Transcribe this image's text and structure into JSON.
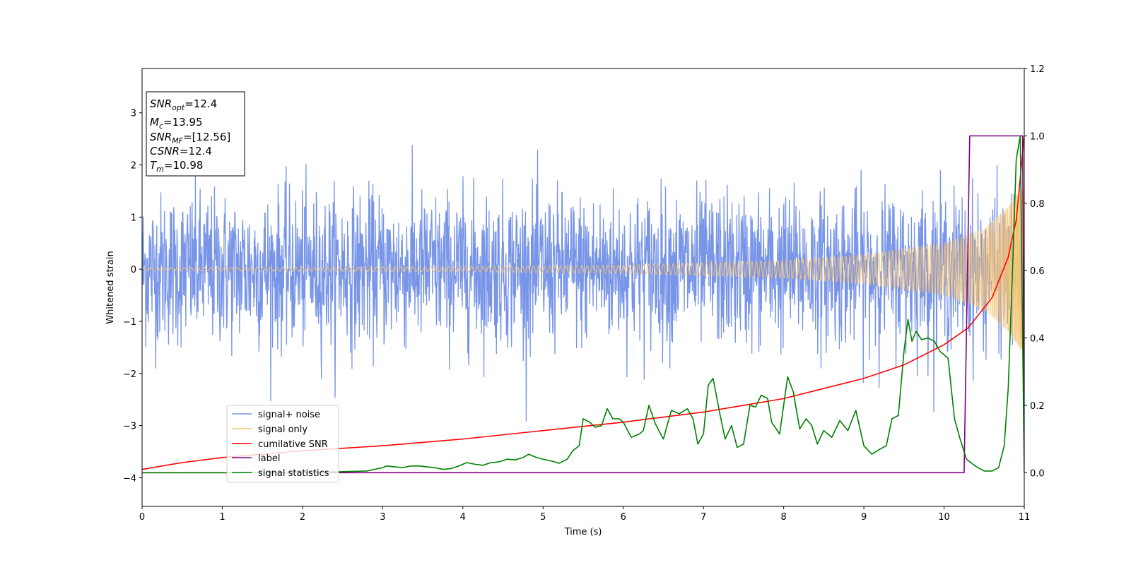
{
  "chart_data": {
    "type": "line",
    "xlabel": "Time (s)",
    "ylabel": "Whitened strain",
    "xlim": [
      0,
      11
    ],
    "ylim_left": [
      -4.55,
      3.85
    ],
    "ylim_right": [
      -0.1,
      1.2
    ],
    "xticks": [
      "0",
      "1",
      "2",
      "3",
      "4",
      "5",
      "6",
      "7",
      "8",
      "9",
      "10",
      "11"
    ],
    "yticks_left": [
      "−4",
      "−3",
      "−2",
      "−1",
      "0",
      "1",
      "2",
      "3"
    ],
    "yticks_right": [
      "0.0",
      "0.2",
      "0.4",
      "0.6",
      "0.8",
      "1.0",
      "1.2"
    ],
    "grid": false,
    "legend_placement": "lower-left",
    "info_box": {
      "snr_opt": {
        "base": "SNR",
        "sub": "opt",
        "value": "=12.4"
      },
      "mc": {
        "base": "M",
        "sub": "c",
        "value": "=13.95"
      },
      "snr_mf": {
        "base": "SNR",
        "sub": "MF",
        "value": "=[12.56]"
      },
      "csnr": {
        "base": "CSNR",
        "value": "=12.4"
      },
      "tm": {
        "base": "T",
        "sub": "m",
        "value": "=10.98"
      }
    },
    "series": [
      {
        "name": "signal+ noise",
        "color": "#7895e8",
        "axis": "left",
        "kind": "noise",
        "envelope_typical": 1.6,
        "envelope_peak": 3.45,
        "x_range": [
          0,
          11
        ]
      },
      {
        "name": "signal only",
        "color": "#f6c374",
        "axis": "left",
        "kind": "chirp",
        "amplitude_points": [
          [
            0,
            0.03
          ],
          [
            4,
            0.05
          ],
          [
            6,
            0.08
          ],
          [
            8,
            0.17
          ],
          [
            9,
            0.28
          ],
          [
            10,
            0.5
          ],
          [
            10.5,
            0.78
          ],
          [
            10.8,
            1.2
          ],
          [
            10.95,
            1.55
          ]
        ],
        "x_range": [
          0,
          11
        ]
      },
      {
        "name": "cumilative SNR",
        "color": "#ff0000",
        "axis": "right",
        "x": [
          0,
          0.5,
          1,
          2,
          3,
          4,
          5,
          6,
          7,
          7.5,
          8,
          8.5,
          9,
          9.5,
          10,
          10.3,
          10.6,
          10.8,
          10.9,
          11
        ],
        "y": [
          0.01,
          0.03,
          0.045,
          0.065,
          0.08,
          0.1,
          0.125,
          0.15,
          0.18,
          0.2,
          0.22,
          0.25,
          0.28,
          0.32,
          0.38,
          0.43,
          0.52,
          0.64,
          0.75,
          1.0
        ]
      },
      {
        "name": "label",
        "color": "#800080",
        "axis": "right",
        "x": [
          0,
          10.25,
          10.32,
          10.98,
          11
        ],
        "y": [
          0,
          0,
          1,
          1,
          0
        ]
      },
      {
        "name": "signal statistics",
        "color": "#008000",
        "axis": "right",
        "x": [
          0,
          2.0,
          2.8,
          3.0,
          3.05,
          3.25,
          3.35,
          3.45,
          3.65,
          3.75,
          3.85,
          3.95,
          4.05,
          4.15,
          4.25,
          4.35,
          4.45,
          4.55,
          4.65,
          4.75,
          4.82,
          4.92,
          5.0,
          5.1,
          5.2,
          5.3,
          5.37,
          5.45,
          5.5,
          5.58,
          5.65,
          5.73,
          5.8,
          5.87,
          5.95,
          6.0,
          6.1,
          6.2,
          6.25,
          6.32,
          6.4,
          6.5,
          6.6,
          6.7,
          6.8,
          6.87,
          6.93,
          7.0,
          7.06,
          7.12,
          7.2,
          7.27,
          7.35,
          7.42,
          7.5,
          7.58,
          7.65,
          7.72,
          7.8,
          7.85,
          7.95,
          8.05,
          8.12,
          8.2,
          8.28,
          8.35,
          8.42,
          8.5,
          8.6,
          8.7,
          8.8,
          8.9,
          9.0,
          9.1,
          9.2,
          9.28,
          9.35,
          9.43,
          9.5,
          9.55,
          9.6,
          9.65,
          9.72,
          9.8,
          9.88,
          9.95,
          10.05,
          10.13,
          10.2,
          10.28,
          10.4,
          10.5,
          10.6,
          10.68,
          10.75,
          10.8,
          10.85,
          10.9,
          10.95,
          11.0
        ],
        "y": [
          0,
          0,
          0.005,
          0.015,
          0.02,
          0.015,
          0.02,
          0.02,
          0.015,
          0.01,
          0.012,
          0.02,
          0.03,
          0.025,
          0.022,
          0.03,
          0.032,
          0.04,
          0.038,
          0.045,
          0.055,
          0.045,
          0.04,
          0.035,
          0.028,
          0.04,
          0.065,
          0.08,
          0.16,
          0.15,
          0.135,
          0.14,
          0.19,
          0.16,
          0.16,
          0.15,
          0.105,
          0.115,
          0.125,
          0.2,
          0.145,
          0.1,
          0.185,
          0.175,
          0.19,
          0.16,
          0.085,
          0.115,
          0.26,
          0.28,
          0.18,
          0.1,
          0.14,
          0.075,
          0.085,
          0.2,
          0.195,
          0.23,
          0.22,
          0.15,
          0.115,
          0.285,
          0.24,
          0.13,
          0.16,
          0.14,
          0.085,
          0.125,
          0.105,
          0.155,
          0.125,
          0.185,
          0.08,
          0.055,
          0.07,
          0.08,
          0.16,
          0.17,
          0.36,
          0.455,
          0.39,
          0.42,
          0.395,
          0.4,
          0.39,
          0.36,
          0.34,
          0.16,
          0.1,
          0.04,
          0.018,
          0.005,
          0.005,
          0.015,
          0.08,
          0.25,
          0.58,
          0.93,
          1.0,
          0.0
        ]
      }
    ]
  }
}
